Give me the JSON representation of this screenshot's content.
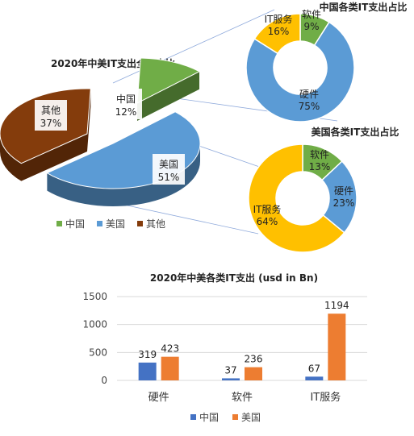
{
  "chart_data": [
    {
      "type": "pie",
      "title": "2020年中美IT支出全球占比",
      "slices": [
        {
          "label": "中国",
          "value": 12,
          "text": "12%",
          "color": "#70AD47"
        },
        {
          "label": "美国",
          "value": 51,
          "text": "51%",
          "color": "#5B9BD5"
        },
        {
          "label": "其他",
          "value": 37,
          "text": "37%",
          "color": "#843C0C"
        }
      ],
      "legend": "bottom"
    },
    {
      "type": "pie",
      "subtype": "donut",
      "title": "中国各类IT支出占比",
      "slices": [
        {
          "label": "软件",
          "value": 9,
          "text": "9%",
          "color": "#70AD47"
        },
        {
          "label": "硬件",
          "value": 75,
          "text": "75%",
          "color": "#5B9BD5"
        },
        {
          "label": "IT服务",
          "value": 16,
          "text": "16%",
          "color": "#FFC000"
        }
      ]
    },
    {
      "type": "pie",
      "subtype": "donut",
      "title": "美国各类IT支出占比",
      "slices": [
        {
          "label": "软件",
          "value": 13,
          "text": "13%",
          "color": "#70AD47"
        },
        {
          "label": "硬件",
          "value": 23,
          "text": "23%",
          "color": "#5B9BD5"
        },
        {
          "label": "IT服务",
          "value": 64,
          "text": "64%",
          "color": "#FFC000"
        }
      ]
    },
    {
      "type": "bar",
      "title": "2020年中美各类IT支出 (usd in Bn)",
      "categories": [
        "硬件",
        "软件",
        "IT服务"
      ],
      "series": [
        {
          "name": "中国",
          "values": [
            319,
            37,
            67
          ],
          "color": "#4472C4"
        },
        {
          "name": "美国",
          "values": [
            423,
            236,
            1194
          ],
          "color": "#ED7D31"
        }
      ],
      "ylim": [
        0,
        1500
      ],
      "yticks": [
        0,
        500,
        1000,
        1500
      ],
      "grid": true,
      "legend": "bottom"
    }
  ]
}
